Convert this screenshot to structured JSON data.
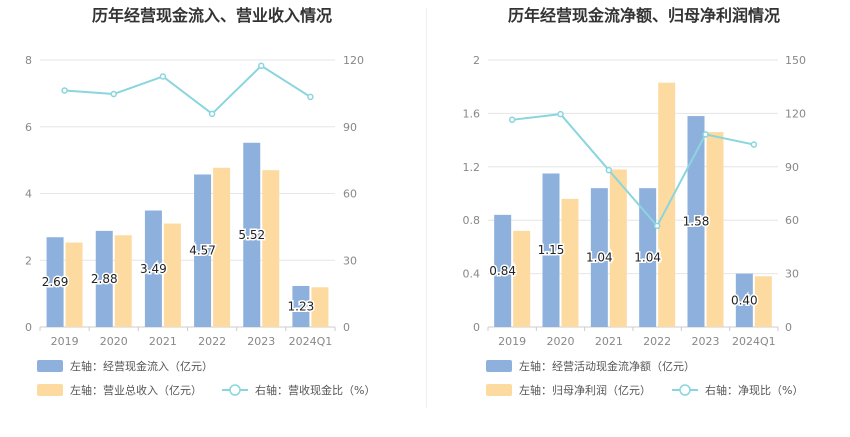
{
  "colors": {
    "bar_primary": "#8eb0dd",
    "bar_secondary": "#fddba0",
    "line": "#8ad5de",
    "axis_text": "#888888",
    "grid": "#e6e6e6",
    "title": "#333333"
  },
  "chart_data": [
    {
      "type": "bar",
      "title": "历年经营现金流入、营业收入情况",
      "categories": [
        "2019",
        "2020",
        "2021",
        "2022",
        "2023",
        "2024Q1"
      ],
      "y_left_ticks": [
        "0",
        "2",
        "4",
        "6",
        "8"
      ],
      "y_right_ticks": [
        "0",
        "30",
        "60",
        "90",
        "120"
      ],
      "ylim_left": [
        0,
        8
      ],
      "ylim_right": [
        0,
        120
      ],
      "grid": true,
      "legend_position": "bottom",
      "series": [
        {
          "name": "左轴：经营现金流入（亿元）",
          "kind": "bar",
          "axis": "left",
          "values": [
            2.69,
            2.88,
            3.49,
            4.57,
            5.52,
            1.23
          ],
          "labels": [
            "2.69",
            "2.88",
            "3.49",
            "4.57",
            "5.52",
            "1.23"
          ]
        },
        {
          "name": "左轴：营业总收入（亿元）",
          "kind": "bar",
          "axis": "left",
          "values": [
            2.53,
            2.75,
            3.1,
            4.77,
            4.7,
            1.19
          ]
        },
        {
          "name": "右轴：营收现金比（%）",
          "kind": "line",
          "axis": "right",
          "values": [
            106.3,
            104.7,
            112.6,
            95.8,
            117.4,
            103.4
          ]
        }
      ]
    },
    {
      "type": "bar",
      "title": "历年经营现金流净额、归母净利润情况",
      "categories": [
        "2019",
        "2020",
        "2021",
        "2022",
        "2023",
        "2024Q1"
      ],
      "y_left_ticks": [
        "0",
        "0.4",
        "0.8",
        "1.2",
        "1.6",
        "2"
      ],
      "y_right_ticks": [
        "0",
        "30",
        "60",
        "90",
        "120",
        "150"
      ],
      "ylim_left": [
        0,
        2
      ],
      "ylim_right": [
        0,
        150
      ],
      "grid": true,
      "legend_position": "bottom",
      "series": [
        {
          "name": "左轴：经营活动现金流净额（亿元）",
          "kind": "bar",
          "axis": "left",
          "values": [
            0.84,
            1.15,
            1.04,
            1.04,
            1.58,
            0.4
          ],
          "labels": [
            "0.84",
            "1.15",
            "1.04",
            "1.04",
            "1.58",
            "0.40"
          ]
        },
        {
          "name": "左轴：归母净利润（亿元）",
          "kind": "bar",
          "axis": "left",
          "values": [
            0.72,
            0.96,
            1.18,
            1.83,
            1.46,
            0.38
          ]
        },
        {
          "name": "右轴：净现比（%）",
          "kind": "line",
          "axis": "right",
          "values": [
            116.4,
            119.6,
            88.1,
            56.8,
            108.2,
            102.5
          ]
        }
      ]
    }
  ]
}
